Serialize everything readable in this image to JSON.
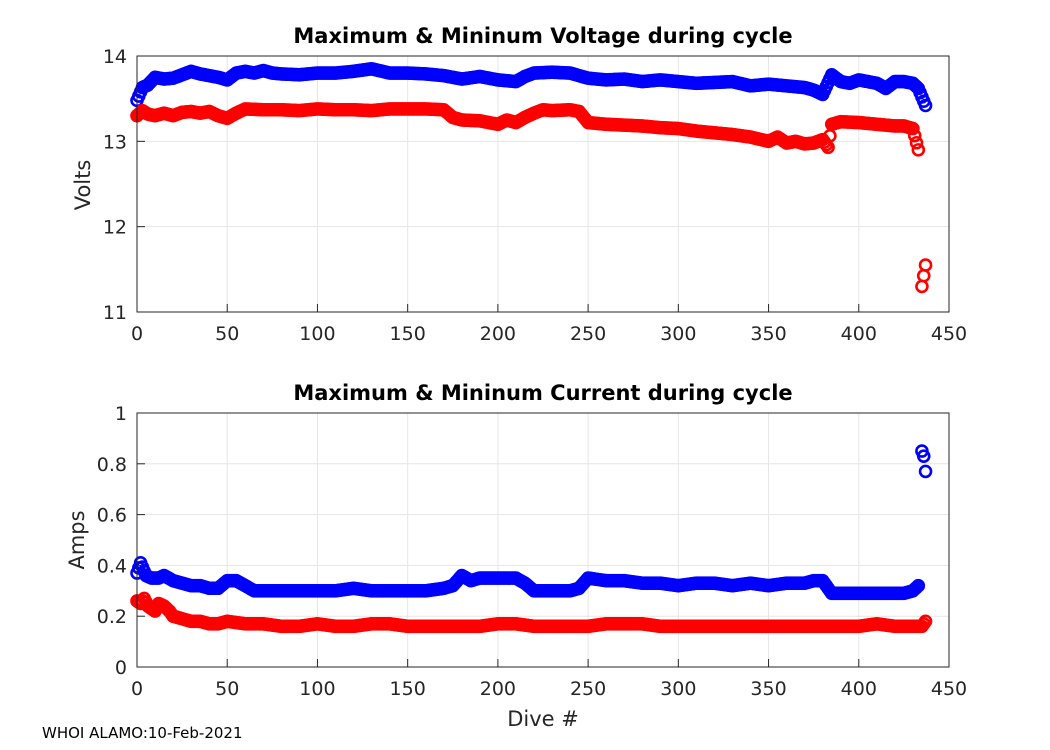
{
  "footer": "WHOI ALAMO:10-Feb-2021",
  "series_colors": {
    "Maximum": "#0000ff",
    "Minimum": "#ff0000"
  },
  "chart_data": [
    {
      "type": "scatter",
      "title": "Maximum & Mininum Voltage during cycle",
      "xlabel": "",
      "ylabel": "Volts",
      "xlim": [
        0,
        450
      ],
      "ylim": [
        11,
        14
      ],
      "xticks": [
        0,
        50,
        100,
        150,
        200,
        250,
        300,
        350,
        400,
        450
      ],
      "yticks": [
        11,
        12,
        13,
        14
      ],
      "grid": true,
      "series": [
        {
          "name": "Maximum",
          "color": "#0000ff",
          "x": [
            0,
            3,
            6,
            10,
            15,
            20,
            25,
            30,
            35,
            40,
            45,
            50,
            55,
            60,
            65,
            70,
            75,
            80,
            90,
            100,
            110,
            120,
            130,
            140,
            150,
            160,
            170,
            180,
            190,
            200,
            210,
            215,
            220,
            230,
            240,
            250,
            260,
            270,
            280,
            290,
            300,
            310,
            320,
            330,
            340,
            350,
            360,
            370,
            375,
            380,
            385,
            390,
            395,
            400,
            410,
            415,
            420,
            425,
            430,
            433,
            435,
            437
          ],
          "y": [
            13.48,
            13.63,
            13.66,
            13.75,
            13.73,
            13.74,
            13.78,
            13.82,
            13.79,
            13.77,
            13.75,
            13.72,
            13.8,
            13.82,
            13.8,
            13.83,
            13.8,
            13.79,
            13.78,
            13.8,
            13.8,
            13.82,
            13.85,
            13.8,
            13.8,
            13.79,
            13.77,
            13.73,
            13.76,
            13.72,
            13.7,
            13.76,
            13.8,
            13.81,
            13.8,
            13.74,
            13.72,
            13.73,
            13.7,
            13.72,
            13.7,
            13.68,
            13.69,
            13.7,
            13.65,
            13.67,
            13.65,
            13.63,
            13.6,
            13.55,
            13.78,
            13.7,
            13.68,
            13.72,
            13.68,
            13.62,
            13.7,
            13.7,
            13.68,
            13.62,
            13.52,
            13.42
          ]
        },
        {
          "name": "Minimum",
          "color": "#ff0000",
          "x": [
            0,
            3,
            6,
            10,
            15,
            20,
            25,
            30,
            35,
            40,
            45,
            50,
            55,
            60,
            70,
            80,
            90,
            100,
            110,
            120,
            130,
            140,
            150,
            160,
            170,
            175,
            180,
            190,
            200,
            205,
            210,
            215,
            220,
            225,
            230,
            240,
            245,
            250,
            260,
            270,
            280,
            290,
            300,
            310,
            320,
            330,
            340,
            350,
            355,
            360,
            365,
            370,
            375,
            380,
            383,
            385,
            390,
            400,
            410,
            420,
            425,
            430,
            433,
            435,
            437
          ],
          "y": [
            13.3,
            13.36,
            13.32,
            13.3,
            13.33,
            13.3,
            13.34,
            13.35,
            13.33,
            13.35,
            13.3,
            13.27,
            13.33,
            13.38,
            13.37,
            13.37,
            13.36,
            13.38,
            13.37,
            13.37,
            13.36,
            13.38,
            13.38,
            13.38,
            13.37,
            13.28,
            13.25,
            13.24,
            13.2,
            13.25,
            13.22,
            13.28,
            13.33,
            13.37,
            13.36,
            13.37,
            13.35,
            13.22,
            13.2,
            13.19,
            13.18,
            13.16,
            13.15,
            13.12,
            13.1,
            13.08,
            13.05,
            13.0,
            13.05,
            12.98,
            13.0,
            12.97,
            12.98,
            13.02,
            12.93,
            13.2,
            13.23,
            13.22,
            13.2,
            13.18,
            13.18,
            13.15,
            12.9,
            11.3,
            11.55
          ]
        }
      ]
    },
    {
      "type": "scatter",
      "title": "Maximum & Mininum Current during cycle",
      "xlabel": "Dive #",
      "ylabel": "Amps",
      "xlim": [
        0,
        450
      ],
      "ylim": [
        0,
        1
      ],
      "xticks": [
        0,
        50,
        100,
        150,
        200,
        250,
        300,
        350,
        400,
        450
      ],
      "yticks": [
        0,
        0.2,
        0.4,
        0.6,
        0.8,
        1
      ],
      "grid": true,
      "series": [
        {
          "name": "Maximum",
          "color": "#0000ff",
          "x": [
            0,
            2,
            5,
            8,
            12,
            15,
            20,
            25,
            30,
            35,
            40,
            45,
            50,
            55,
            60,
            65,
            70,
            80,
            90,
            100,
            110,
            120,
            130,
            140,
            150,
            160,
            170,
            175,
            180,
            185,
            190,
            200,
            205,
            210,
            215,
            220,
            230,
            240,
            245,
            250,
            260,
            270,
            280,
            290,
            300,
            310,
            320,
            330,
            340,
            350,
            360,
            370,
            375,
            380,
            385,
            390,
            400,
            410,
            420,
            425,
            430,
            433,
            435,
            436,
            437
          ],
          "y": [
            0.37,
            0.41,
            0.36,
            0.35,
            0.35,
            0.36,
            0.34,
            0.33,
            0.32,
            0.32,
            0.31,
            0.31,
            0.34,
            0.34,
            0.32,
            0.3,
            0.3,
            0.3,
            0.3,
            0.3,
            0.3,
            0.31,
            0.3,
            0.3,
            0.3,
            0.3,
            0.31,
            0.32,
            0.36,
            0.34,
            0.35,
            0.35,
            0.35,
            0.35,
            0.33,
            0.3,
            0.3,
            0.3,
            0.31,
            0.35,
            0.34,
            0.34,
            0.33,
            0.33,
            0.32,
            0.33,
            0.33,
            0.32,
            0.33,
            0.32,
            0.33,
            0.33,
            0.34,
            0.34,
            0.29,
            0.29,
            0.29,
            0.29,
            0.29,
            0.29,
            0.3,
            0.32,
            0.85,
            0.83,
            0.77
          ]
        },
        {
          "name": "Minimum",
          "color": "#ff0000",
          "x": [
            0,
            2,
            4,
            6,
            8,
            10,
            12,
            15,
            18,
            20,
            25,
            30,
            35,
            40,
            45,
            50,
            60,
            70,
            80,
            90,
            100,
            110,
            120,
            130,
            140,
            150,
            160,
            170,
            180,
            190,
            200,
            210,
            220,
            230,
            240,
            250,
            260,
            270,
            280,
            290,
            300,
            310,
            320,
            330,
            340,
            350,
            360,
            370,
            380,
            390,
            400,
            410,
            420,
            430,
            435,
            437
          ],
          "y": [
            0.26,
            0.25,
            0.27,
            0.24,
            0.23,
            0.22,
            0.25,
            0.24,
            0.22,
            0.2,
            0.19,
            0.18,
            0.18,
            0.17,
            0.17,
            0.18,
            0.17,
            0.17,
            0.16,
            0.16,
            0.17,
            0.16,
            0.16,
            0.17,
            0.17,
            0.16,
            0.16,
            0.16,
            0.16,
            0.16,
            0.17,
            0.17,
            0.16,
            0.16,
            0.16,
            0.16,
            0.17,
            0.17,
            0.17,
            0.16,
            0.16,
            0.16,
            0.16,
            0.16,
            0.16,
            0.16,
            0.16,
            0.16,
            0.16,
            0.16,
            0.16,
            0.17,
            0.16,
            0.16,
            0.16,
            0.18
          ]
        }
      ]
    }
  ]
}
